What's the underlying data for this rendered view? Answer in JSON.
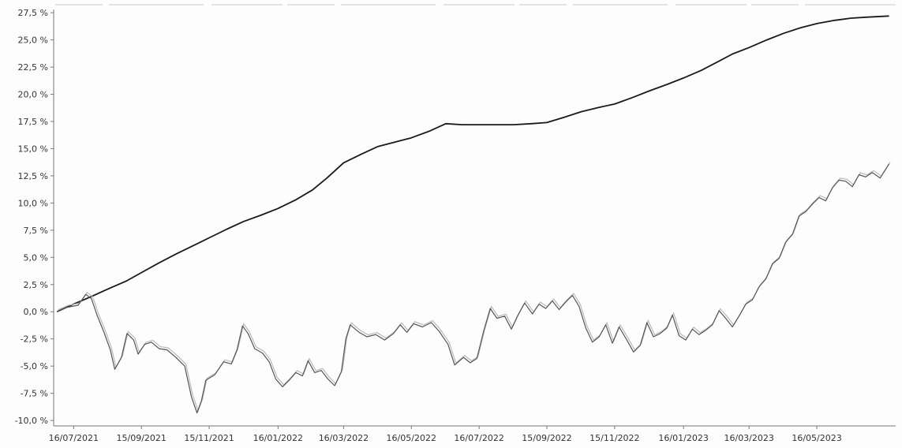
{
  "chart_data": {
    "type": "line",
    "title": "",
    "xlabel": "",
    "ylabel": "",
    "ylim": [
      -10.5,
      27.8
    ],
    "xlim": [
      "2021-06-28",
      "2023-07-26"
    ],
    "grid": false,
    "legend": "none",
    "y_ticks": [
      {
        "value": 27.5,
        "label": "27,5 %"
      },
      {
        "value": 25.0,
        "label": "25,0 %"
      },
      {
        "value": 22.5,
        "label": "22,5 %"
      },
      {
        "value": 20.0,
        "label": "20,0 %"
      },
      {
        "value": 17.5,
        "label": "17,5 %"
      },
      {
        "value": 15.0,
        "label": "15,0 %"
      },
      {
        "value": 12.5,
        "label": "12,5 %"
      },
      {
        "value": 10.0,
        "label": "10,0 %"
      },
      {
        "value": 7.5,
        "label": "7,5 %"
      },
      {
        "value": 5.0,
        "label": "5,0 %"
      },
      {
        "value": 2.5,
        "label": "2,5 %"
      },
      {
        "value": 0.0,
        "label": "0,0 %"
      },
      {
        "value": -2.5,
        "label": "-2,5 %"
      },
      {
        "value": -5.0,
        "label": "-5,0 %"
      },
      {
        "value": -7.5,
        "label": "-7,5 %"
      },
      {
        "value": -10.0,
        "label": "-10,0 %"
      }
    ],
    "x_ticks": [
      {
        "value": "2021-07-16",
        "label": "16/07/2021"
      },
      {
        "value": "2021-09-15",
        "label": "15/09/2021"
      },
      {
        "value": "2021-11-15",
        "label": "15/11/2021"
      },
      {
        "value": "2022-01-16",
        "label": "16/01/2022"
      },
      {
        "value": "2022-03-16",
        "label": "16/03/2022"
      },
      {
        "value": "2022-05-16",
        "label": "16/05/2022"
      },
      {
        "value": "2022-07-16",
        "label": "16/07/2022"
      },
      {
        "value": "2022-09-15",
        "label": "15/09/2022"
      },
      {
        "value": "2022-11-15",
        "label": "15/11/2022"
      },
      {
        "value": "2023-01-16",
        "label": "16/01/2023"
      },
      {
        "value": "2023-03-16",
        "label": "16/03/2023"
      },
      {
        "value": "2023-05-16",
        "label": "16/05/2023"
      }
    ],
    "series": [
      {
        "color": "#1a1a1a",
        "points": [
          [
            "2021-07-01",
            0.0
          ],
          [
            "2021-07-16",
            0.7
          ],
          [
            "2021-08-01",
            1.4
          ],
          [
            "2021-08-16",
            2.1
          ],
          [
            "2021-09-01",
            2.8
          ],
          [
            "2021-09-15",
            3.6
          ],
          [
            "2021-10-01",
            4.5
          ],
          [
            "2021-10-16",
            5.3
          ],
          [
            "2021-11-01",
            6.1
          ],
          [
            "2021-11-15",
            6.8
          ],
          [
            "2021-12-01",
            7.6
          ],
          [
            "2021-12-16",
            8.3
          ],
          [
            "2022-01-01",
            8.9
          ],
          [
            "2022-01-16",
            9.5
          ],
          [
            "2022-02-01",
            10.3
          ],
          [
            "2022-02-16",
            11.2
          ],
          [
            "2022-03-01",
            12.3
          ],
          [
            "2022-03-16",
            13.7
          ],
          [
            "2022-04-01",
            14.5
          ],
          [
            "2022-04-16",
            15.2
          ],
          [
            "2022-05-01",
            15.6
          ],
          [
            "2022-05-16",
            16.0
          ],
          [
            "2022-06-01",
            16.6
          ],
          [
            "2022-06-16",
            17.3
          ],
          [
            "2022-07-01",
            17.2
          ],
          [
            "2022-07-16",
            17.2
          ],
          [
            "2022-08-01",
            17.2
          ],
          [
            "2022-08-16",
            17.2
          ],
          [
            "2022-09-01",
            17.3
          ],
          [
            "2022-09-15",
            17.4
          ],
          [
            "2022-10-01",
            17.9
          ],
          [
            "2022-10-16",
            18.4
          ],
          [
            "2022-11-01",
            18.8
          ],
          [
            "2022-11-15",
            19.1
          ],
          [
            "2022-12-01",
            19.7
          ],
          [
            "2022-12-16",
            20.3
          ],
          [
            "2023-01-01",
            20.9
          ],
          [
            "2023-01-16",
            21.5
          ],
          [
            "2023-02-01",
            22.2
          ],
          [
            "2023-02-16",
            23.0
          ],
          [
            "2023-03-01",
            23.7
          ],
          [
            "2023-03-16",
            24.3
          ],
          [
            "2023-04-01",
            25.0
          ],
          [
            "2023-04-16",
            25.6
          ],
          [
            "2023-05-01",
            26.1
          ],
          [
            "2023-05-16",
            26.5
          ],
          [
            "2023-06-01",
            26.8
          ],
          [
            "2023-06-16",
            27.0
          ],
          [
            "2023-07-01",
            27.1
          ],
          [
            "2023-07-20",
            27.2
          ]
        ]
      },
      {
        "color": "#555555",
        "points": [
          [
            "2021-07-01",
            0.0
          ],
          [
            "2021-07-10",
            0.4
          ],
          [
            "2021-07-20",
            0.6
          ],
          [
            "2021-07-27",
            1.6
          ],
          [
            "2021-08-01",
            1.2
          ],
          [
            "2021-08-06",
            -0.3
          ],
          [
            "2021-08-12",
            -1.8
          ],
          [
            "2021-08-18",
            -3.5
          ],
          [
            "2021-08-22",
            -5.3
          ],
          [
            "2021-08-28",
            -4.2
          ],
          [
            "2021-09-02",
            -2.0
          ],
          [
            "2021-09-08",
            -2.6
          ],
          [
            "2021-09-12",
            -3.9
          ],
          [
            "2021-09-18",
            -3.0
          ],
          [
            "2021-09-24",
            -2.8
          ],
          [
            "2021-10-01",
            -3.4
          ],
          [
            "2021-10-08",
            -3.5
          ],
          [
            "2021-10-16",
            -4.2
          ],
          [
            "2021-10-24",
            -5.0
          ],
          [
            "2021-10-30",
            -7.8
          ],
          [
            "2021-11-04",
            -9.3
          ],
          [
            "2021-11-08",
            -8.2
          ],
          [
            "2021-11-12",
            -6.3
          ],
          [
            "2021-11-20",
            -5.8
          ],
          [
            "2021-11-28",
            -4.6
          ],
          [
            "2021-12-05",
            -4.8
          ],
          [
            "2021-12-10",
            -3.5
          ],
          [
            "2021-12-15",
            -1.3
          ],
          [
            "2021-12-20",
            -2.0
          ],
          [
            "2021-12-26",
            -3.4
          ],
          [
            "2022-01-02",
            -3.8
          ],
          [
            "2022-01-08",
            -4.6
          ],
          [
            "2022-01-14",
            -6.2
          ],
          [
            "2022-01-20",
            -6.9
          ],
          [
            "2022-01-26",
            -6.3
          ],
          [
            "2022-02-01",
            -5.6
          ],
          [
            "2022-02-07",
            -5.9
          ],
          [
            "2022-02-12",
            -4.5
          ],
          [
            "2022-02-18",
            -5.6
          ],
          [
            "2022-02-24",
            -5.4
          ],
          [
            "2022-03-02",
            -6.2
          ],
          [
            "2022-03-08",
            -6.8
          ],
          [
            "2022-03-14",
            -5.5
          ],
          [
            "2022-03-18",
            -2.5
          ],
          [
            "2022-03-22",
            -1.2
          ],
          [
            "2022-03-30",
            -1.9
          ],
          [
            "2022-04-06",
            -2.3
          ],
          [
            "2022-04-14",
            -2.1
          ],
          [
            "2022-04-22",
            -2.6
          ],
          [
            "2022-04-30",
            -2.0
          ],
          [
            "2022-05-06",
            -1.2
          ],
          [
            "2022-05-12",
            -1.9
          ],
          [
            "2022-05-18",
            -1.1
          ],
          [
            "2022-05-26",
            -1.4
          ],
          [
            "2022-06-03",
            -1.0
          ],
          [
            "2022-06-10",
            -1.8
          ],
          [
            "2022-06-18",
            -3.0
          ],
          [
            "2022-06-24",
            -4.9
          ],
          [
            "2022-07-02",
            -4.2
          ],
          [
            "2022-07-08",
            -4.7
          ],
          [
            "2022-07-14",
            -4.3
          ],
          [
            "2022-07-20",
            -1.8
          ],
          [
            "2022-07-26",
            0.3
          ],
          [
            "2022-08-01",
            -0.6
          ],
          [
            "2022-08-08",
            -0.4
          ],
          [
            "2022-08-14",
            -1.6
          ],
          [
            "2022-08-20",
            -0.3
          ],
          [
            "2022-08-26",
            0.8
          ],
          [
            "2022-09-02",
            -0.2
          ],
          [
            "2022-09-08",
            0.7
          ],
          [
            "2022-09-14",
            0.3
          ],
          [
            "2022-09-20",
            1.0
          ],
          [
            "2022-09-26",
            0.2
          ],
          [
            "2022-10-02",
            0.9
          ],
          [
            "2022-10-08",
            1.5
          ],
          [
            "2022-10-14",
            0.5
          ],
          [
            "2022-10-20",
            -1.5
          ],
          [
            "2022-10-26",
            -2.8
          ],
          [
            "2022-11-01",
            -2.3
          ],
          [
            "2022-11-07",
            -1.2
          ],
          [
            "2022-11-13",
            -2.9
          ],
          [
            "2022-11-19",
            -1.4
          ],
          [
            "2022-11-26",
            -2.6
          ],
          [
            "2022-12-02",
            -3.7
          ],
          [
            "2022-12-08",
            -3.1
          ],
          [
            "2022-12-14",
            -1.0
          ],
          [
            "2022-12-20",
            -2.3
          ],
          [
            "2022-12-26",
            -2.0
          ],
          [
            "2023-01-01",
            -1.5
          ],
          [
            "2023-01-06",
            -0.3
          ],
          [
            "2023-01-12",
            -2.2
          ],
          [
            "2023-01-18",
            -2.6
          ],
          [
            "2023-01-24",
            -1.6
          ],
          [
            "2023-01-30",
            -2.1
          ],
          [
            "2023-02-05",
            -1.7
          ],
          [
            "2023-02-11",
            -1.2
          ],
          [
            "2023-02-17",
            0.1
          ],
          [
            "2023-02-23",
            -0.6
          ],
          [
            "2023-03-01",
            -1.4
          ],
          [
            "2023-03-07",
            -0.4
          ],
          [
            "2023-03-13",
            0.7
          ],
          [
            "2023-03-19",
            1.1
          ],
          [
            "2023-03-25",
            2.3
          ],
          [
            "2023-03-31",
            3.0
          ],
          [
            "2023-04-06",
            4.4
          ],
          [
            "2023-04-12",
            4.9
          ],
          [
            "2023-04-18",
            6.4
          ],
          [
            "2023-04-24",
            7.1
          ],
          [
            "2023-04-30",
            8.8
          ],
          [
            "2023-05-06",
            9.2
          ],
          [
            "2023-05-12",
            9.9
          ],
          [
            "2023-05-18",
            10.5
          ],
          [
            "2023-05-24",
            10.2
          ],
          [
            "2023-05-30",
            11.4
          ],
          [
            "2023-06-05",
            12.1
          ],
          [
            "2023-06-11",
            12.0
          ],
          [
            "2023-06-17",
            11.5
          ],
          [
            "2023-06-23",
            12.6
          ],
          [
            "2023-06-29",
            12.4
          ],
          [
            "2023-07-05",
            12.8
          ],
          [
            "2023-07-12",
            12.3
          ],
          [
            "2023-07-20",
            13.6
          ]
        ]
      }
    ]
  }
}
